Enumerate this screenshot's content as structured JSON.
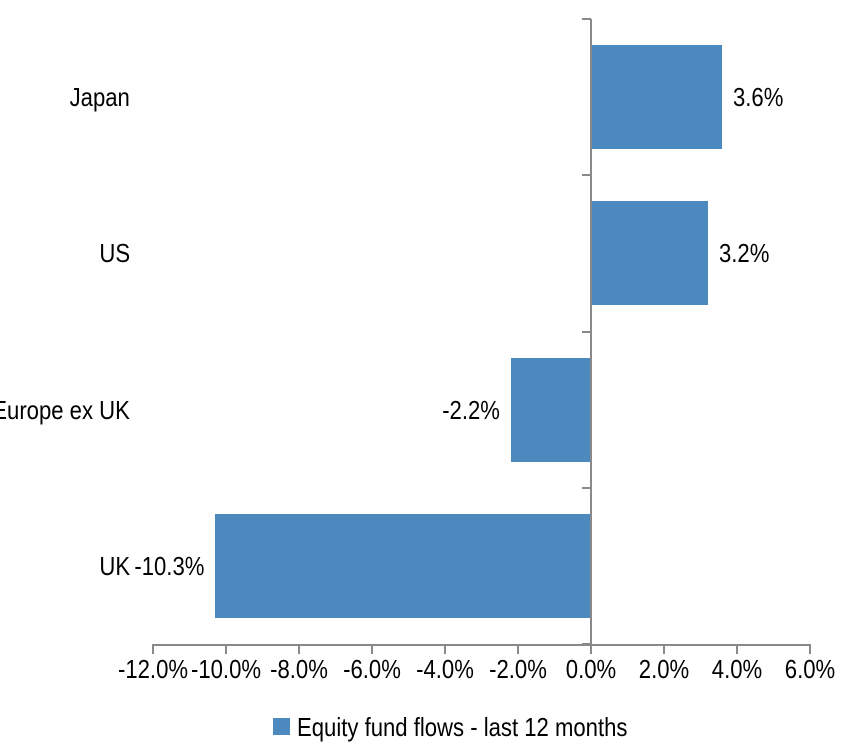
{
  "chart_data": {
    "type": "bar",
    "orientation": "horizontal",
    "title": "",
    "categories": [
      "Japan",
      "US",
      "Europe ex UK",
      "UK"
    ],
    "series": [
      {
        "name": "Equity fund flows - last 12 months",
        "values": [
          3.6,
          3.2,
          -2.2,
          -10.3
        ],
        "data_labels": [
          "3.6%",
          "3.2%",
          "-2.2%",
          "-10.3%"
        ]
      }
    ],
    "xlabel": "",
    "ylabel": "",
    "xlim": [
      -12,
      6
    ],
    "x_ticks": [
      {
        "value": -12,
        "label": "-12.0%"
      },
      {
        "value": -10,
        "label": "-10.0%"
      },
      {
        "value": -8,
        "label": "-8.0%"
      },
      {
        "value": -6,
        "label": "-6.0%"
      },
      {
        "value": -4,
        "label": "-4.0%"
      },
      {
        "value": -2,
        "label": "-2.0%"
      },
      {
        "value": 0,
        "label": "0.0%"
      },
      {
        "value": 2,
        "label": "2.0%"
      },
      {
        "value": 4,
        "label": "4.0%"
      },
      {
        "value": 6,
        "label": "6.0%"
      }
    ],
    "grid": false,
    "legend_position": "bottom",
    "colors": {
      "bar": "#4C89BF",
      "axis": "#898989",
      "text": "#000000",
      "background": "#FFFFFF"
    }
  },
  "legend": {
    "marker": "square-icon",
    "label": "Equity fund flows - last 12 months"
  }
}
